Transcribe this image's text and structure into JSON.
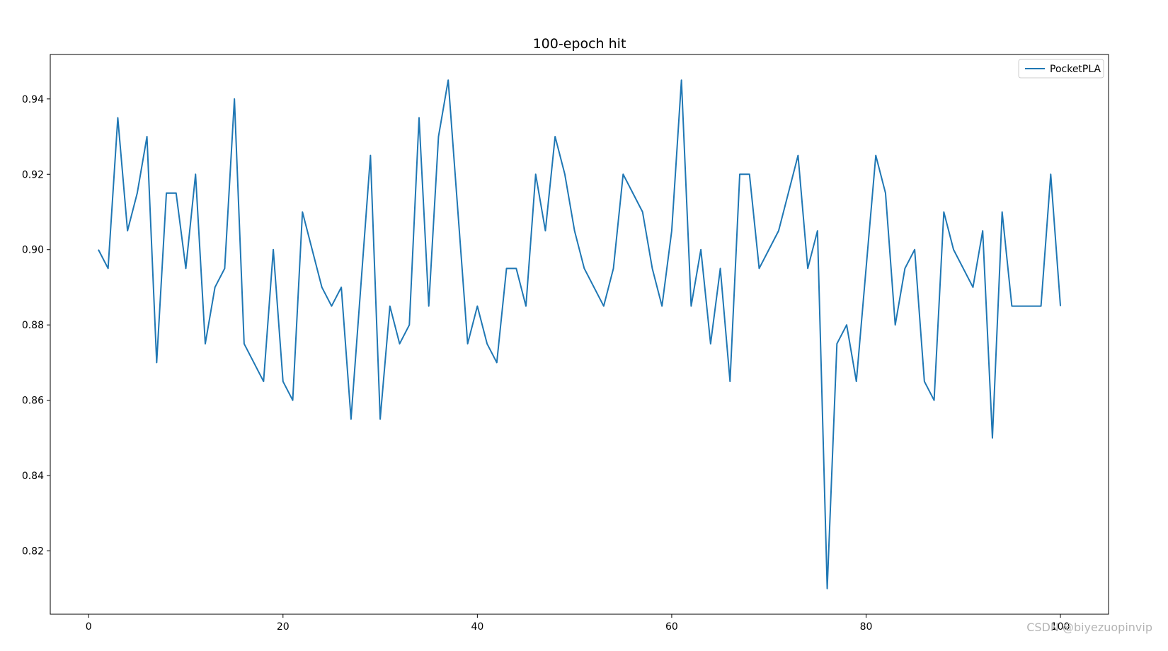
{
  "chart_data": {
    "type": "line",
    "title": "100-epoch hit",
    "xlabel": "",
    "ylabel": "",
    "xlim": [
      -3.95,
      104.95
    ],
    "ylim": [
      0.8032,
      0.9518
    ],
    "xticks": [
      0,
      20,
      40,
      60,
      80,
      100
    ],
    "yticks": [
      0.82,
      0.84,
      0.86,
      0.88,
      0.9,
      0.92,
      0.94
    ],
    "grid": false,
    "legend_position": "top-right",
    "series": [
      {
        "name": "PocketPLA",
        "color": "#1f77b4",
        "x": [
          1,
          2,
          3,
          4,
          5,
          6,
          7,
          8,
          9,
          10,
          11,
          12,
          13,
          14,
          15,
          16,
          17,
          18,
          19,
          20,
          21,
          22,
          23,
          24,
          25,
          26,
          27,
          28,
          29,
          30,
          31,
          32,
          33,
          34,
          35,
          36,
          37,
          38,
          39,
          40,
          41,
          42,
          43,
          44,
          45,
          46,
          47,
          48,
          49,
          50,
          51,
          52,
          53,
          54,
          55,
          56,
          57,
          58,
          59,
          60,
          61,
          62,
          63,
          64,
          65,
          66,
          67,
          68,
          69,
          70,
          71,
          72,
          73,
          74,
          75,
          76,
          77,
          78,
          79,
          80,
          81,
          82,
          83,
          84,
          85,
          86,
          87,
          88,
          89,
          90,
          91,
          92,
          93,
          94,
          95,
          96,
          97,
          98,
          99,
          100
        ],
        "y": [
          0.9,
          0.895,
          0.935,
          0.905,
          0.915,
          0.93,
          0.87,
          0.915,
          0.915,
          0.895,
          0.92,
          0.875,
          0.89,
          0.895,
          0.94,
          0.875,
          0.87,
          0.865,
          0.9,
          0.865,
          0.86,
          0.91,
          0.9,
          0.89,
          0.885,
          0.89,
          0.855,
          0.89,
          0.925,
          0.855,
          0.885,
          0.875,
          0.88,
          0.935,
          0.885,
          0.93,
          0.945,
          0.91,
          0.875,
          0.885,
          0.875,
          0.87,
          0.895,
          0.895,
          0.885,
          0.92,
          0.905,
          0.93,
          0.92,
          0.905,
          0.895,
          0.89,
          0.885,
          0.895,
          0.92,
          0.915,
          0.91,
          0.895,
          0.885,
          0.905,
          0.945,
          0.885,
          0.9,
          0.875,
          0.895,
          0.865,
          0.92,
          0.92,
          0.895,
          0.9,
          0.905,
          0.915,
          0.925,
          0.895,
          0.905,
          0.81,
          0.875,
          0.88,
          0.865,
          0.895,
          0.925,
          0.915,
          0.88,
          0.895,
          0.9,
          0.865,
          0.86,
          0.91,
          0.9,
          0.895,
          0.89,
          0.905,
          0.85,
          0.91,
          0.885,
          0.885,
          0.885,
          0.885,
          0.92,
          0.885
        ]
      }
    ]
  },
  "watermark": "CSDN @biyezuopinvip"
}
